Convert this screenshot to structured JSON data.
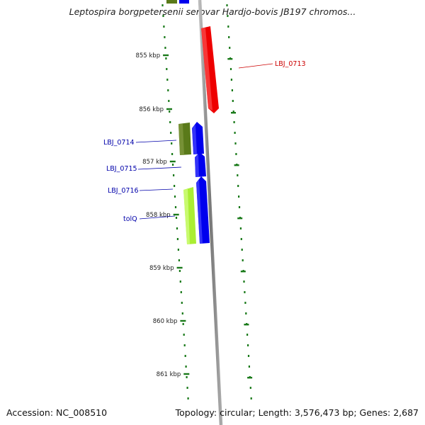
{
  "title": "Leptospira borgpetersenii serovar Hardjo-bovis JB197 chromos...",
  "footer": {
    "accession": "Accession: NC_008510",
    "topology": "Topology: circular; Length: 3,576,473 bp; Genes: 2,687"
  },
  "colors": {
    "backbone": "#8a8a8a",
    "ticks": "#1a7a1a",
    "forward_label": "#cc0000",
    "reverse_label": "#0000aa",
    "red": "#ee0000",
    "blue": "#0000ee",
    "olive": "#5a7a1a",
    "lime": "#aaee33"
  },
  "ticks": [
    {
      "label": "855 kbp"
    },
    {
      "label": "856 kbp"
    },
    {
      "label": "857 kbp"
    },
    {
      "label": "858 kbp"
    },
    {
      "label": "859 kbp"
    },
    {
      "label": "860 kbp"
    },
    {
      "label": "861 kbp"
    }
  ],
  "genes": [
    {
      "label": "LBJ_0713",
      "strand": "forward",
      "color": "red"
    },
    {
      "label": "LBJ_0714",
      "strand": "reverse",
      "color": "olive"
    },
    {
      "label": "LBJ_0715",
      "strand": "reverse",
      "color": "blue"
    },
    {
      "label": "LBJ_0716",
      "strand": "reverse",
      "color": "blue"
    },
    {
      "label": "tolQ",
      "strand": "reverse",
      "color": "lime"
    }
  ]
}
